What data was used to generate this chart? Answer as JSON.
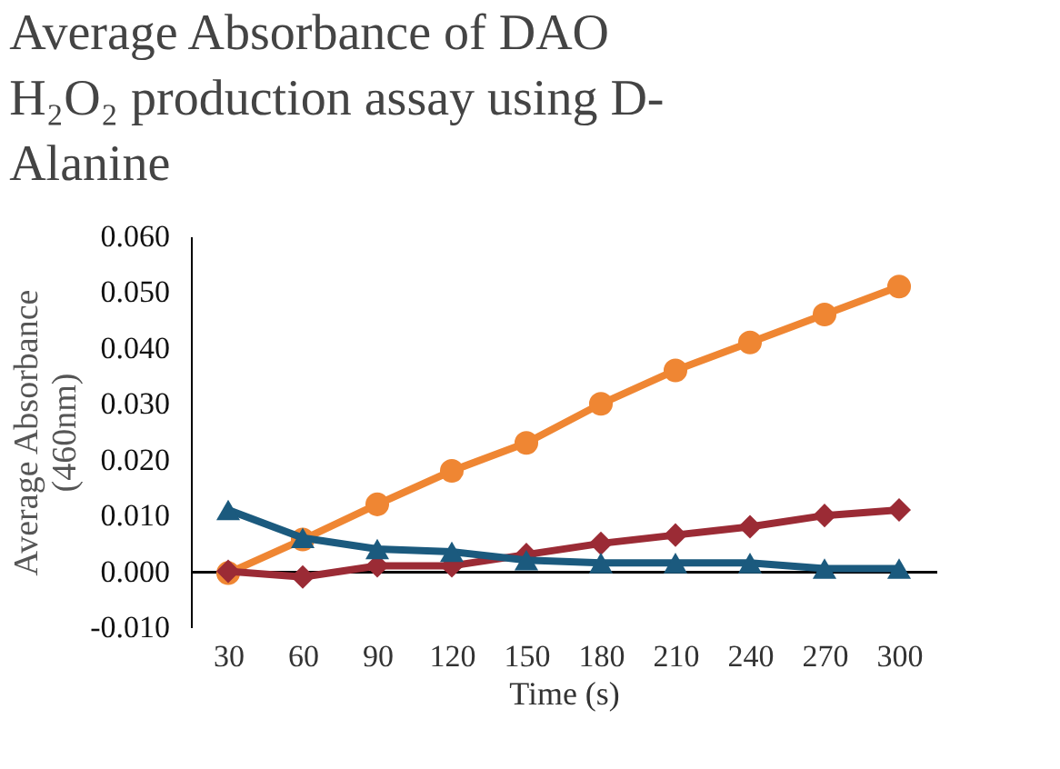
{
  "chart_data": {
    "type": "line",
    "title": "Average Absorbance of DAO H₂O₂ production  assay using D-Alanine",
    "xlabel": "Time (s)",
    "ylabel": "Average Absorbance (460nm)",
    "categories": [
      "30",
      "60",
      "90",
      "120",
      "150",
      "180",
      "210",
      "240",
      "270",
      "300"
    ],
    "series": [
      {
        "color": "#ef8633",
        "marker": "circle",
        "values": [
          -0.0003,
          0.0057,
          0.012,
          0.018,
          0.023,
          0.03,
          0.036,
          0.041,
          0.046,
          0.051
        ]
      },
      {
        "color": "#9b2b35",
        "marker": "diamond",
        "values": [
          0.0,
          -0.001,
          0.001,
          0.001,
          0.003,
          0.005,
          0.0065,
          0.008,
          0.01,
          0.011
        ]
      },
      {
        "color": "#1b5a7e",
        "marker": "triangle",
        "values": [
          0.011,
          0.006,
          0.004,
          0.0035,
          0.002,
          0.0015,
          0.0015,
          0.0015,
          0.0005,
          0.0005
        ]
      }
    ],
    "ylim": [
      -0.01,
      0.06
    ],
    "yticks": [
      {
        "value": -0.01,
        "label": "-0.010"
      },
      {
        "value": 0.0,
        "label": "0.000"
      },
      {
        "value": 0.01,
        "label": "0.010"
      },
      {
        "value": 0.02,
        "label": "0.020"
      },
      {
        "value": 0.03,
        "label": "0.030"
      },
      {
        "value": 0.04,
        "label": "0.040"
      },
      {
        "value": 0.05,
        "label": "0.050"
      },
      {
        "value": 0.06,
        "label": "0.060"
      }
    ],
    "grid": false,
    "line_style": "solid"
  }
}
